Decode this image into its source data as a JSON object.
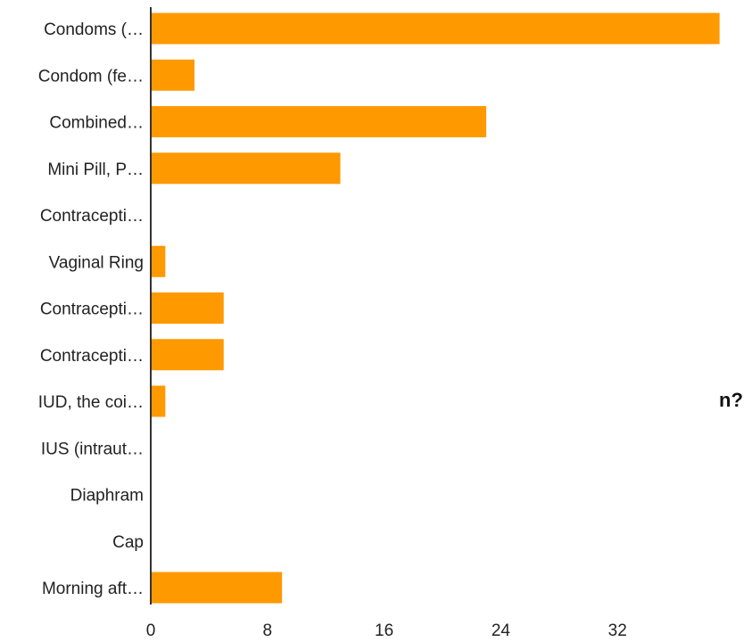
{
  "side_text": "n?",
  "colors": {
    "bar": "#ff9900",
    "axis": "#333333",
    "text": "#222222"
  },
  "chart_data": {
    "type": "bar",
    "orientation": "horizontal",
    "categories": [
      "Condoms (…",
      "Condom (fe…",
      "Combined…",
      "Mini Pill, P…",
      "Contracepti…",
      "Vaginal Ring",
      "Contracepti…",
      "Contracepti…",
      "IUD, the coi…",
      "IUS (intraut…",
      "Diaphram",
      "Cap",
      "Morning aft…"
    ],
    "values": [
      39,
      3,
      23,
      13,
      0,
      1,
      5,
      5,
      1,
      0,
      0,
      0,
      9
    ],
    "xlim": [
      0,
      40
    ],
    "xticks": [
      0,
      8,
      16,
      24,
      32
    ],
    "grid": false,
    "title": "",
    "xlabel": "",
    "ylabel": ""
  }
}
